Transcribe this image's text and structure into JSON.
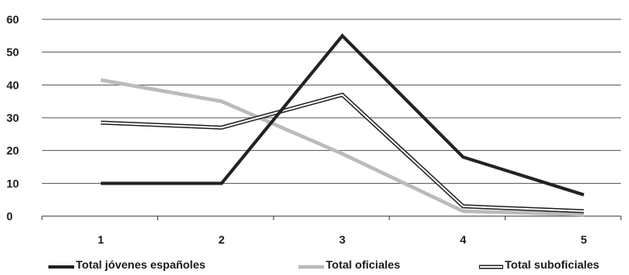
{
  "chart_data": {
    "type": "line",
    "title": "",
    "xlabel": "",
    "ylabel": "",
    "categories": [
      "1",
      "2",
      "3",
      "4",
      "5"
    ],
    "ylim": [
      0,
      60
    ],
    "yticks": [
      "0",
      "10",
      "20",
      "30",
      "40",
      "50",
      "60"
    ],
    "grid": true,
    "legend_position": "bottom",
    "series": [
      {
        "name": "Total jóvenes españoles",
        "values": [
          10,
          10,
          55,
          18,
          6.5
        ],
        "color": "#222222",
        "style": "solid-dark"
      },
      {
        "name": "Total oficiales",
        "values": [
          41.5,
          35,
          19,
          1.5,
          0.5
        ],
        "color": "#bbbbbb",
        "style": "solid-light"
      },
      {
        "name": "Total suboficiales",
        "values": [
          28.5,
          27,
          37,
          3,
          1.5
        ],
        "color": "#222222",
        "style": "double-outline"
      }
    ]
  }
}
